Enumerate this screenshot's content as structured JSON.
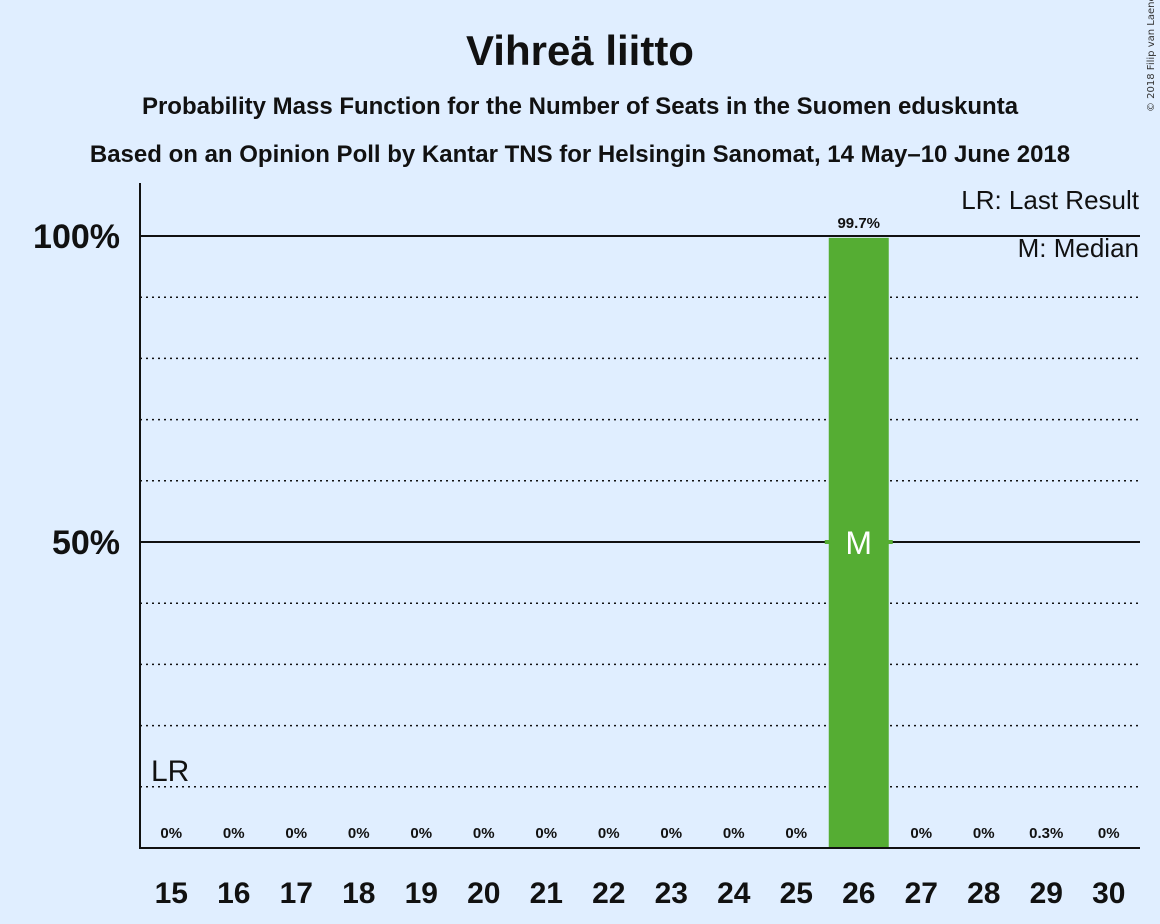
{
  "page": {
    "title": "Vihreä liitto",
    "subtitle1": "Probability Mass Function for the Number of Seats in the Suomen eduskunta",
    "subtitle2": "Based on an Opinion Poll by Kantar TNS for Helsingin Sanomat, 14 May–10 June 2018",
    "copyright": "© 2018 Filip van Laenen",
    "legend_lr": "LR: Last Result",
    "legend_median": "M: Median"
  },
  "chart_data": {
    "type": "bar",
    "title": "Vihreä liitto",
    "subtitle": "Probability Mass Function for the Number of Seats in the Suomen eduskunta",
    "categories": [
      "15",
      "16",
      "17",
      "18",
      "19",
      "20",
      "21",
      "22",
      "23",
      "24",
      "25",
      "26",
      "27",
      "28",
      "29",
      "30"
    ],
    "values": [
      0,
      0,
      0,
      0,
      0,
      0,
      0,
      0,
      0,
      0,
      0,
      99.7,
      0,
      0,
      0.3,
      0
    ],
    "value_labels": [
      "0%",
      "0%",
      "0%",
      "0%",
      "0%",
      "0%",
      "0%",
      "0%",
      "0%",
      "0%",
      "0%",
      "99.7%",
      "0%",
      "0%",
      "0.3%",
      "0%"
    ],
    "ylim": [
      0,
      100
    ],
    "yticks": [
      50,
      100
    ],
    "ytick_labels": [
      "50%",
      "100%"
    ],
    "minor_gridlines": [
      10,
      20,
      30,
      40,
      60,
      70,
      80,
      90
    ],
    "last_result": "15",
    "last_result_label": "LR",
    "median": "26",
    "median_label": "M",
    "bar_color": "#55ad33",
    "legend_placement": "top-right",
    "grid": true
  }
}
